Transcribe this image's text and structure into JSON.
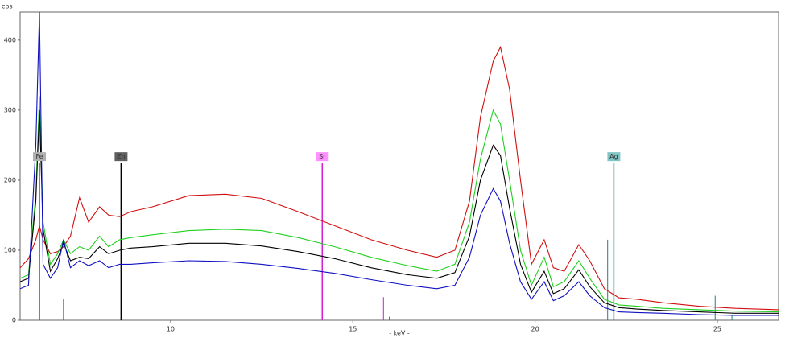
{
  "chart_data": {
    "type": "line",
    "x_label": "- keV -",
    "y_label": "cps",
    "xlim": [
      5.87,
      26.68
    ],
    "ylim": [
      0,
      440
    ],
    "xticks": [
      10,
      15,
      20,
      25
    ],
    "yticks": [
      0,
      100,
      200,
      300,
      400
    ],
    "x": [
      5.87,
      6.1,
      6.3,
      6.4,
      6.5,
      6.7,
      6.9,
      7.06,
      7.25,
      7.5,
      7.75,
      8.05,
      8.3,
      8.6,
      8.9,
      9.5,
      10.5,
      11.5,
      12.5,
      13.5,
      14.5,
      15.5,
      16.5,
      17.3,
      17.8,
      18.2,
      18.5,
      18.85,
      19.05,
      19.3,
      19.6,
      19.9,
      20.25,
      20.5,
      20.8,
      21.2,
      21.5,
      21.9,
      22.3,
      22.8,
      23.5,
      24.5,
      25.5,
      26.68
    ],
    "series": [
      {
        "color": "#d01010",
        "values": [
          75,
          88,
          115,
          135,
          115,
          95,
          98,
          105,
          120,
          175,
          140,
          162,
          150,
          148,
          155,
          162,
          178,
          180,
          174,
          155,
          135,
          115,
          100,
          90,
          100,
          170,
          290,
          370,
          390,
          330,
          200,
          80,
          115,
          75,
          70,
          108,
          85,
          45,
          32,
          30,
          25,
          20,
          17,
          15
        ]
      },
      {
        "color": "#20d020",
        "values": [
          60,
          65,
          180,
          320,
          140,
          80,
          95,
          115,
          95,
          105,
          100,
          120,
          105,
          115,
          118,
          122,
          128,
          130,
          128,
          118,
          105,
          90,
          78,
          70,
          80,
          140,
          230,
          300,
          280,
          200,
          100,
          50,
          90,
          48,
          55,
          85,
          60,
          30,
          22,
          20,
          17,
          15,
          13,
          12
        ]
      },
      {
        "color": "#000000",
        "values": [
          55,
          60,
          170,
          300,
          130,
          70,
          88,
          110,
          85,
          90,
          88,
          105,
          95,
          100,
          103,
          105,
          110,
          110,
          106,
          98,
          88,
          75,
          65,
          60,
          68,
          120,
          200,
          250,
          235,
          160,
          80,
          40,
          70,
          38,
          45,
          72,
          48,
          25,
          18,
          16,
          14,
          12,
          10,
          10
        ]
      },
      {
        "color": "#1010c0",
        "values": [
          45,
          50,
          250,
          440,
          80,
          60,
          75,
          115,
          75,
          85,
          78,
          85,
          75,
          80,
          80,
          82,
          85,
          84,
          80,
          74,
          67,
          58,
          50,
          45,
          50,
          90,
          150,
          188,
          170,
          110,
          55,
          30,
          55,
          28,
          35,
          55,
          35,
          18,
          12,
          11,
          10,
          8,
          7,
          7
        ]
      }
    ],
    "elements": [
      {
        "name": "Fe",
        "color": "#555555",
        "label_color": "#b0b0b0",
        "lines": [
          {
            "energy": 6.4,
            "height": 225
          },
          {
            "energy": 7.06,
            "height": 30
          }
        ]
      },
      {
        "name": "Zn",
        "color": "#000000",
        "label_color": "#606060",
        "lines": [
          {
            "energy": 8.64,
            "height": 225
          },
          {
            "energy": 9.57,
            "height": 30
          }
        ]
      },
      {
        "name": "Sr",
        "color": "#d020d0",
        "label_color": "#ff90ff",
        "lines": [
          {
            "energy": 14.16,
            "height": 225
          },
          {
            "energy": 14.1,
            "height": 110
          },
          {
            "energy": 15.84,
            "height": 33
          },
          {
            "energy": 16.0,
            "height": 5
          }
        ]
      },
      {
        "name": "Ag",
        "color": "#208080",
        "label_color": "#80c4c4",
        "lines": [
          {
            "energy": 22.16,
            "height": 225
          },
          {
            "energy": 21.99,
            "height": 115
          },
          {
            "energy": 24.94,
            "height": 35
          },
          {
            "energy": 25.4,
            "height": 8
          }
        ]
      }
    ]
  }
}
